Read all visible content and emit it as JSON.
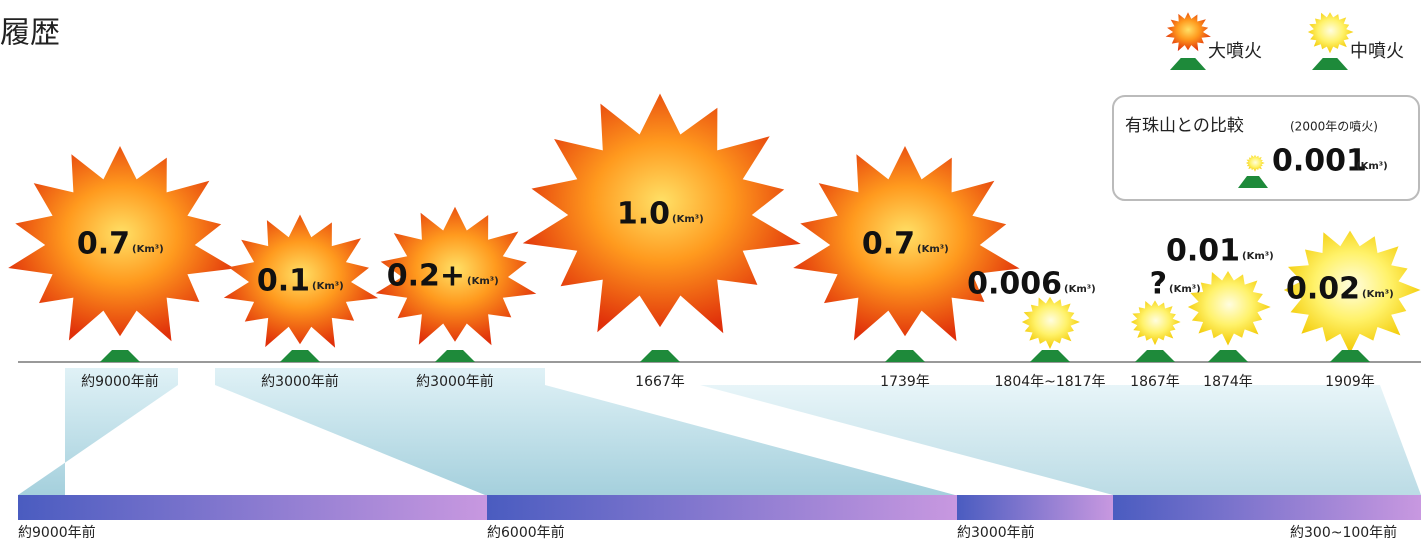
{
  "header": {
    "title": "履歴"
  },
  "legend": {
    "large": "大噴火",
    "medium": "中噴火"
  },
  "comparison": {
    "title": "有珠山との比較",
    "note": "(2000年の噴火)",
    "value": "0.001",
    "unit": "(Km³)"
  },
  "unit": "(Km³)",
  "eruptions": [
    {
      "volume": "0.7",
      "date": "約9000年前",
      "kind": "large"
    },
    {
      "volume": "0.1",
      "date": "約3000年前",
      "kind": "large"
    },
    {
      "volume": "0.2+",
      "date": "約3000年前",
      "kind": "large"
    },
    {
      "volume": "1.0",
      "date": "1667年",
      "kind": "large"
    },
    {
      "volume": "0.7",
      "date": "1739年",
      "kind": "large"
    },
    {
      "volume": "0.006",
      "date": "1804年~1817年",
      "kind": "medium"
    },
    {
      "volume": "?",
      "date": "1867年",
      "kind": "medium"
    },
    {
      "volume": "0.01",
      "date": "1874年",
      "kind": "medium"
    },
    {
      "volume": "0.02",
      "date": "1909年",
      "kind": "medium"
    }
  ],
  "timeline": [
    "約9000年前",
    "約6000年前",
    "約3000年前",
    "約300~100年前"
  ]
}
